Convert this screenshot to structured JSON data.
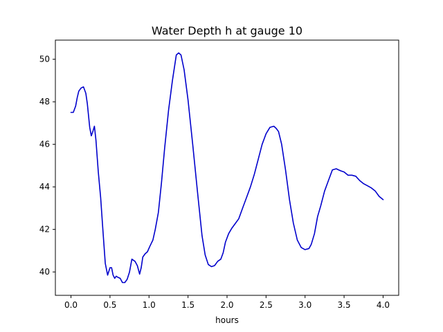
{
  "chart_data": {
    "type": "line",
    "title": "Water Depth h at gauge 10",
    "xlabel": "hours",
    "ylabel": "",
    "xlim": [
      -0.2,
      4.2
    ],
    "ylim": [
      38.9,
      50.9
    ],
    "xticks": [
      0.0,
      0.5,
      1.0,
      1.5,
      2.0,
      2.5,
      3.0,
      3.5,
      4.0
    ],
    "xtick_labels": [
      "0.0",
      "0.5",
      "1.0",
      "1.5",
      "2.0",
      "2.5",
      "3.0",
      "3.5",
      "4.0"
    ],
    "yticks": [
      40,
      42,
      44,
      46,
      48,
      50
    ],
    "ytick_labels": [
      "40",
      "42",
      "44",
      "46",
      "48",
      "50"
    ],
    "grid": false,
    "series": [
      {
        "color": "#0000cc",
        "x": [
          0.0,
          0.03,
          0.06,
          0.08,
          0.1,
          0.13,
          0.16,
          0.19,
          0.21,
          0.24,
          0.26,
          0.28,
          0.3,
          0.32,
          0.35,
          0.38,
          0.41,
          0.44,
          0.47,
          0.5,
          0.52,
          0.54,
          0.56,
          0.58,
          0.6,
          0.63,
          0.66,
          0.69,
          0.72,
          0.75,
          0.78,
          0.82,
          0.85,
          0.88,
          0.9,
          0.92,
          0.95,
          0.98,
          1.01,
          1.05,
          1.08,
          1.12,
          1.16,
          1.2,
          1.25,
          1.3,
          1.35,
          1.38,
          1.41,
          1.45,
          1.5,
          1.56,
          1.62,
          1.68,
          1.72,
          1.76,
          1.8,
          1.84,
          1.88,
          1.92,
          1.95,
          1.98,
          2.02,
          2.06,
          2.1,
          2.15,
          2.2,
          2.25,
          2.3,
          2.35,
          2.4,
          2.45,
          2.5,
          2.55,
          2.6,
          2.63,
          2.66,
          2.7,
          2.75,
          2.8,
          2.85,
          2.9,
          2.95,
          3.0,
          3.05,
          3.08,
          3.12,
          3.16,
          3.2,
          3.25,
          3.3,
          3.35,
          3.4,
          3.43,
          3.46,
          3.5,
          3.55,
          3.6,
          3.65,
          3.7,
          3.75,
          3.8,
          3.85,
          3.9,
          3.95,
          4.0
        ],
        "y": [
          47.5,
          47.5,
          47.8,
          48.2,
          48.5,
          48.65,
          48.7,
          48.4,
          47.9,
          46.8,
          46.4,
          46.6,
          46.85,
          46.2,
          44.7,
          43.5,
          41.9,
          40.4,
          39.85,
          40.2,
          40.2,
          39.85,
          39.7,
          39.8,
          39.75,
          39.7,
          39.5,
          39.5,
          39.65,
          40.0,
          40.6,
          40.5,
          40.3,
          39.9,
          40.2,
          40.7,
          40.85,
          40.95,
          41.2,
          41.5,
          42.0,
          42.8,
          44.2,
          45.8,
          47.6,
          49.0,
          50.2,
          50.3,
          50.2,
          49.5,
          48.1,
          46.0,
          43.8,
          41.7,
          40.8,
          40.35,
          40.25,
          40.3,
          40.5,
          40.6,
          40.9,
          41.4,
          41.8,
          42.05,
          42.25,
          42.5,
          43.0,
          43.5,
          44.0,
          44.6,
          45.3,
          46.0,
          46.5,
          46.8,
          46.85,
          46.75,
          46.6,
          46.0,
          44.8,
          43.4,
          42.3,
          41.5,
          41.15,
          41.05,
          41.1,
          41.3,
          41.8,
          42.6,
          43.1,
          43.8,
          44.3,
          44.8,
          44.85,
          44.8,
          44.75,
          44.7,
          44.55,
          44.55,
          44.5,
          44.3,
          44.15,
          44.05,
          43.95,
          43.8,
          43.55,
          43.4
        ]
      }
    ]
  }
}
